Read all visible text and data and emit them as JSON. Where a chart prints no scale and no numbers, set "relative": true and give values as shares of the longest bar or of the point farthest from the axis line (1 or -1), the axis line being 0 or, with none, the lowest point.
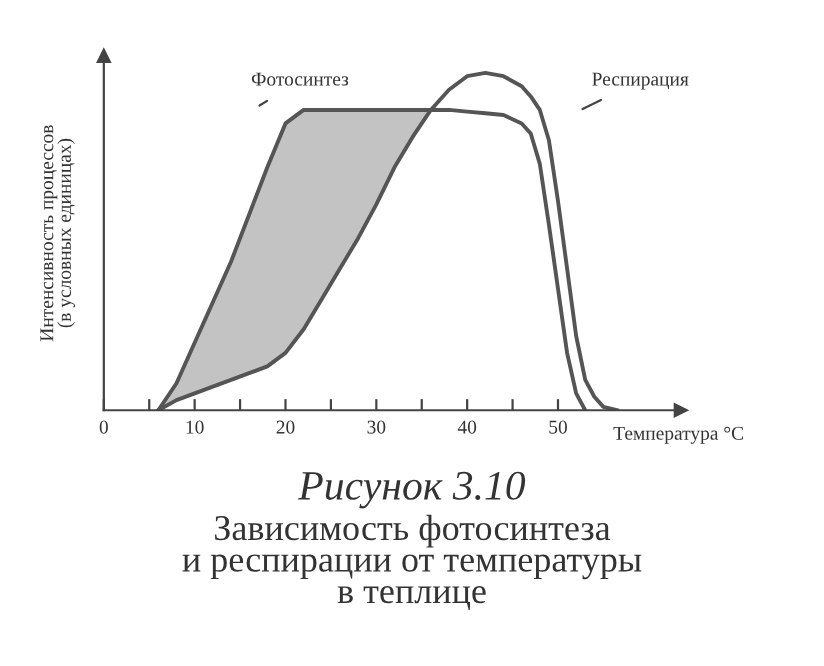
{
  "chart_data": {
    "type": "line",
    "relative": true,
    "title": "Рисунок 3.10",
    "subtitle": "Зависимость фотосинтеза\nи респирации от температуры\nв теплице",
    "xlabel": "Температура °С",
    "ylabel": "Интенсивность процессов\n(в условных единицах)",
    "x": [
      6,
      8,
      10,
      12,
      14,
      16,
      18,
      20,
      22,
      24,
      26,
      28,
      30,
      32,
      34,
      36,
      38,
      40,
      42,
      44,
      46,
      47,
      48,
      49,
      50,
      51,
      52,
      53,
      54,
      55,
      56.5
    ],
    "xlim": [
      0,
      63.5
    ],
    "xticks": [
      0,
      10,
      20,
      30,
      40,
      50,
      {
        "value": 5,
        "label": null
      },
      {
        "value": 15,
        "label": null
      },
      {
        "value": 25,
        "label": null
      },
      {
        "value": 35,
        "label": null
      },
      {
        "value": 45,
        "label": null
      }
    ],
    "grid": false,
    "legend": false,
    "marker": "none",
    "line_style": "solid",
    "series": [
      {
        "name": "Фотосинтез",
        "color": "#555555",
        "values": [
          0,
          0.08,
          0.2,
          0.32,
          0.44,
          0.58,
          0.72,
          0.85,
          0.89,
          0.89,
          0.89,
          0.89,
          0.89,
          0.89,
          0.89,
          0.89,
          0.89,
          0.885,
          0.88,
          0.875,
          0.85,
          0.82,
          0.73,
          0.55,
          0.36,
          0.17,
          0.05,
          0,
          null,
          null,
          null
        ],
        "lower": [
          0,
          0.03,
          0.05,
          0.07,
          0.09,
          0.11,
          0.13,
          0.17,
          0.24,
          0.33,
          0.42,
          0.51,
          0.61,
          0.72,
          0.81,
          0.89,
          null,
          null,
          null,
          null,
          null,
          null,
          null,
          null,
          null,
          null,
          null,
          null,
          null,
          null,
          null
        ],
        "upper": [
          0,
          0.08,
          0.2,
          0.32,
          0.44,
          0.58,
          0.72,
          0.85,
          0.89,
          0.89,
          0.89,
          0.89,
          0.89,
          0.89,
          0.89,
          0.89,
          null,
          null,
          null,
          null,
          null,
          null,
          null,
          null,
          null,
          null,
          null,
          null,
          null,
          null,
          null
        ]
      },
      {
        "name": "Респирация",
        "color": "#555555",
        "values": [
          0,
          0.03,
          0.05,
          0.07,
          0.09,
          0.11,
          0.13,
          0.17,
          0.24,
          0.33,
          0.42,
          0.51,
          0.61,
          0.72,
          0.81,
          0.89,
          0.95,
          0.99,
          1.0,
          0.99,
          0.96,
          0.93,
          0.89,
          0.8,
          0.62,
          0.42,
          0.22,
          0.09,
          0.04,
          0.01,
          0
        ]
      }
    ]
  }
}
